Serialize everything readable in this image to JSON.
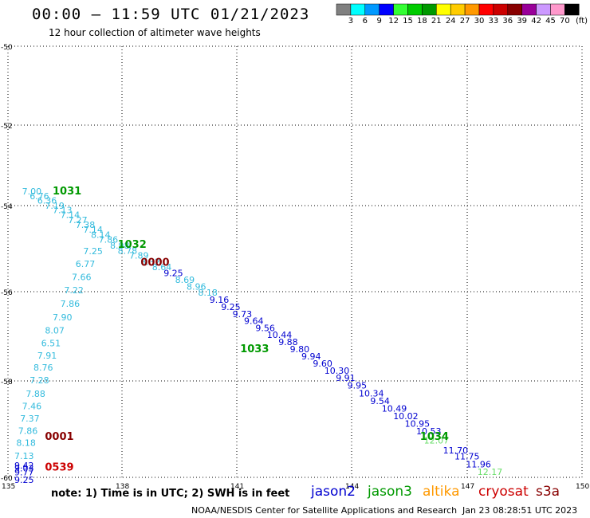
{
  "title": "00:00 – 11:59 UTC 01/21/2023",
  "subtitle": "12 hour collection of altimeter wave heights",
  "note": "note: 1) Time is in UTC; 2) SWH is in feet",
  "legend": [
    {
      "name": "jason2",
      "color": "#0000d0"
    },
    {
      "name": "jason3",
      "color": "#009900"
    },
    {
      "name": "altika",
      "color": "#ff9900"
    },
    {
      "name": "cryosat",
      "color": "#cc0000"
    },
    {
      "name": "s3a",
      "color": "#880000"
    }
  ],
  "footer_left": "NOAA/NESDIS Center for Satellite Applications and Research",
  "footer_right": "Jan 23 08:28:51 UTC 2023",
  "colorbar": {
    "colors": [
      "#808080",
      "#00ffff",
      "#0099ff",
      "#0000ff",
      "#33ff33",
      "#00cc00",
      "#009900",
      "#ffff00",
      "#ffcc00",
      "#ff9900",
      "#ff0000",
      "#cc0000",
      "#880000",
      "#990099",
      "#cc99ff",
      "#ff99cc",
      "#000000"
    ],
    "labels": [
      "3",
      "6",
      "9",
      "12",
      "15",
      "18",
      "21",
      "24",
      "27",
      "30",
      "33",
      "36",
      "39",
      "42",
      "45",
      "70"
    ],
    "unit": "(ft)"
  },
  "chart_data": {
    "type": "scatter",
    "xlim": [
      135,
      150
    ],
    "ylim": [
      -60,
      -50
    ],
    "xticks": [
      "135",
      "138",
      "141",
      "144",
      "147",
      "150"
    ],
    "yticks": [
      "-50",
      "-52",
      "-54",
      "-56",
      "-58",
      "-60"
    ],
    "grid": true,
    "track_labels": [
      {
        "text": "1031",
        "x": 136.0,
        "y": -53.72,
        "color": "#009900"
      },
      {
        "text": "1032",
        "x": 137.7,
        "y": -54.98,
        "color": "#009900"
      },
      {
        "text": "0000",
        "x": 138.3,
        "y": -55.4,
        "color": "#880000"
      },
      {
        "text": "1033",
        "x": 140.9,
        "y": -57.36,
        "color": "#009900"
      },
      {
        "text": "1034",
        "x": 145.6,
        "y": -59.22,
        "color": "#009900"
      },
      {
        "text": "0001",
        "x": 135.8,
        "y": -59.22,
        "color": "#880000"
      },
      {
        "text": "0539",
        "x": 135.8,
        "y": -59.86,
        "color": "#cc0000"
      }
    ],
    "points": [
      {
        "v": "7.00",
        "x": 135.2,
        "y": -53.72,
        "color": "#33bbdd"
      },
      {
        "v": "6.76",
        "x": 135.4,
        "y": -53.84,
        "color": "#33bbdd"
      },
      {
        "v": "6.36",
        "x": 135.6,
        "y": -53.95,
        "color": "#33bbdd"
      },
      {
        "v": "7.19",
        "x": 135.8,
        "y": -54.07,
        "color": "#33bbdd"
      },
      {
        "v": "7.13",
        "x": 136.0,
        "y": -54.18,
        "color": "#33bbdd"
      },
      {
        "v": "7.14",
        "x": 136.2,
        "y": -54.29,
        "color": "#33bbdd"
      },
      {
        "v": "7.27",
        "x": 136.4,
        "y": -54.41,
        "color": "#33bbdd"
      },
      {
        "v": "7.38",
        "x": 136.6,
        "y": -54.52,
        "color": "#33bbdd"
      },
      {
        "v": "7.14",
        "x": 136.8,
        "y": -54.63,
        "color": "#33bbdd"
      },
      {
        "v": "8.14",
        "x": 137.0,
        "y": -54.75,
        "color": "#33bbdd"
      },
      {
        "v": "7.86",
        "x": 137.2,
        "y": -54.86,
        "color": "#33bbdd"
      },
      {
        "v": "8.98",
        "x": 137.5,
        "y": -55.0,
        "color": "#33bbdd"
      },
      {
        "v": "8.78",
        "x": 137.7,
        "y": -55.12,
        "color": "#33bbdd"
      },
      {
        "v": "7.89",
        "x": 138.0,
        "y": -55.23,
        "color": "#33bbdd"
      },
      {
        "v": "8.32",
        "x": 138.3,
        "y": -55.38,
        "color": "#33bbdd"
      },
      {
        "v": "8.64",
        "x": 138.6,
        "y": -55.5,
        "color": "#33bbdd"
      },
      {
        "v": "9.25",
        "x": 138.9,
        "y": -55.64,
        "color": "#0000d0"
      },
      {
        "v": "8.69",
        "x": 139.2,
        "y": -55.8,
        "color": "#33bbdd"
      },
      {
        "v": "8.96",
        "x": 139.5,
        "y": -55.95,
        "color": "#33bbdd"
      },
      {
        "v": "8.18",
        "x": 139.8,
        "y": -56.09,
        "color": "#33bbdd"
      },
      {
        "v": "9.16",
        "x": 140.1,
        "y": -56.25,
        "color": "#0000d0"
      },
      {
        "v": "9.25",
        "x": 140.4,
        "y": -56.41,
        "color": "#0000d0"
      },
      {
        "v": "9.73",
        "x": 140.7,
        "y": -56.57,
        "color": "#0000d0"
      },
      {
        "v": "9.64",
        "x": 141.0,
        "y": -56.72,
        "color": "#0000d0"
      },
      {
        "v": "9.56",
        "x": 141.3,
        "y": -56.88,
        "color": "#0000d0"
      },
      {
        "v": "10.44",
        "x": 141.6,
        "y": -57.04,
        "color": "#0000d0"
      },
      {
        "v": "9.88",
        "x": 141.9,
        "y": -57.2,
        "color": "#0000d0"
      },
      {
        "v": "9.80",
        "x": 142.2,
        "y": -57.36,
        "color": "#0000d0"
      },
      {
        "v": "9.94",
        "x": 142.5,
        "y": -57.52,
        "color": "#0000d0"
      },
      {
        "v": "9.60",
        "x": 142.8,
        "y": -57.68,
        "color": "#0000d0"
      },
      {
        "v": "10.30",
        "x": 143.1,
        "y": -57.84,
        "color": "#0000d0"
      },
      {
        "v": "9.91",
        "x": 143.4,
        "y": -58.0,
        "color": "#0000d0"
      },
      {
        "v": "9.95",
        "x": 143.7,
        "y": -58.16,
        "color": "#0000d0"
      },
      {
        "v": "10.34",
        "x": 144.0,
        "y": -58.32,
        "color": "#0000d0"
      },
      {
        "v": "9.54",
        "x": 144.3,
        "y": -58.48,
        "color": "#0000d0"
      },
      {
        "v": "10.49",
        "x": 144.6,
        "y": -58.64,
        "color": "#0000d0"
      },
      {
        "v": "10.02",
        "x": 144.9,
        "y": -58.79,
        "color": "#0000d0"
      },
      {
        "v": "10.95",
        "x": 145.2,
        "y": -58.95,
        "color": "#0000d0"
      },
      {
        "v": "10.53",
        "x": 145.5,
        "y": -59.11,
        "color": "#0000d0"
      },
      {
        "v": "12.07",
        "x": 145.7,
        "y": -59.3,
        "color": "#66dd66"
      },
      {
        "v": "11.70",
        "x": 146.2,
        "y": -59.5,
        "color": "#0000d0"
      },
      {
        "v": "11.75",
        "x": 146.5,
        "y": -59.63,
        "color": "#0000d0"
      },
      {
        "v": "11.96",
        "x": 146.8,
        "y": -59.79,
        "color": "#0000d0"
      },
      {
        "v": "12.17",
        "x": 147.1,
        "y": -59.95,
        "color": "#66dd66"
      },
      {
        "v": "7.25",
        "x": 136.8,
        "y": -55.13,
        "color": "#33bbdd"
      },
      {
        "v": "6.77",
        "x": 136.6,
        "y": -55.43,
        "color": "#33bbdd"
      },
      {
        "v": "7.66",
        "x": 136.5,
        "y": -55.73,
        "color": "#33bbdd"
      },
      {
        "v": "7.22",
        "x": 136.3,
        "y": -56.04,
        "color": "#33bbdd"
      },
      {
        "v": "7.86",
        "x": 136.2,
        "y": -56.34,
        "color": "#33bbdd"
      },
      {
        "v": "7.90",
        "x": 136.0,
        "y": -56.64,
        "color": "#33bbdd"
      },
      {
        "v": "8.07",
        "x": 135.8,
        "y": -56.94,
        "color": "#33bbdd"
      },
      {
        "v": "6.51",
        "x": 135.7,
        "y": -57.22,
        "color": "#33bbdd"
      },
      {
        "v": "7.91",
        "x": 135.6,
        "y": -57.5,
        "color": "#33bbdd"
      },
      {
        "v": "8.76",
        "x": 135.5,
        "y": -57.77,
        "color": "#33bbdd"
      },
      {
        "v": "7.28",
        "x": 135.4,
        "y": -58.05,
        "color": "#33bbdd"
      },
      {
        "v": "7.88",
        "x": 135.3,
        "y": -58.33,
        "color": "#33bbdd"
      },
      {
        "v": "7.46",
        "x": 135.2,
        "y": -58.59,
        "color": "#33bbdd"
      },
      {
        "v": "7.37",
        "x": 135.15,
        "y": -58.84,
        "color": "#33bbdd"
      },
      {
        "v": "7.86",
        "x": 135.1,
        "y": -59.1,
        "color": "#33bbdd"
      },
      {
        "v": "8.18",
        "x": 135.05,
        "y": -59.35,
        "color": "#33bbdd"
      },
      {
        "v": "7.13",
        "x": 135.0,
        "y": -59.62,
        "color": "#33bbdd"
      },
      {
        "v": "9.42",
        "x": 135.0,
        "y": -59.82,
        "color": "#0000d0"
      },
      {
        "v": "9.03",
        "x": 135.0,
        "y": -59.88,
        "color": "#0000d0"
      },
      {
        "v": "9.77",
        "x": 135.0,
        "y": -59.96,
        "color": "#0000d0"
      },
      {
        "v": "9.25",
        "x": 135.0,
        "y": -60.12,
        "color": "#0000d0"
      }
    ]
  }
}
